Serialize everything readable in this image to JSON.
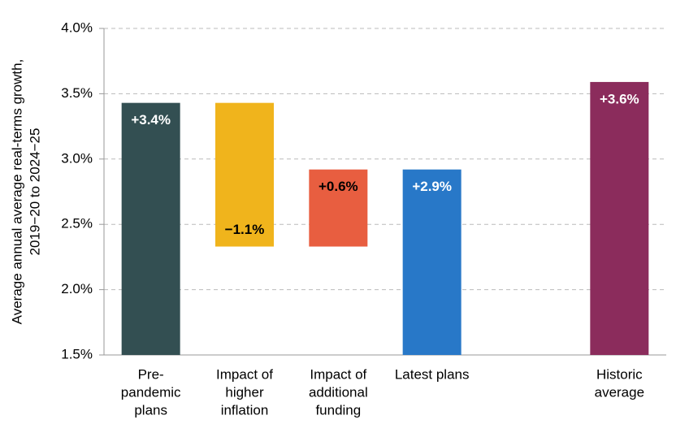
{
  "chart_data": {
    "type": "waterfall",
    "ylabel": [
      "Average annual average real-terms growth,",
      "2019−20 to 2024−25"
    ],
    "categories": [
      [
        "Pre-",
        "pandemic",
        "plans"
      ],
      [
        "Impact of",
        "higher",
        "inflation"
      ],
      [
        "Impact of",
        "additional",
        "funding"
      ],
      [
        "Latest plans"
      ],
      null,
      [
        "Historic",
        "average"
      ]
    ],
    "measure": [
      "absolute",
      "relative",
      "relative",
      "absolute",
      null,
      "absolute"
    ],
    "values": [
      3.43,
      -1.1,
      0.59,
      2.92,
      null,
      3.59
    ],
    "value_labels": [
      "+3.4%",
      "−1.1%",
      "+0.6%",
      "+2.9%",
      null,
      "+3.6%"
    ],
    "colors": [
      "#334f52",
      "#f0b41c",
      "#e85e40",
      "#2878c8",
      null,
      "#8b2c5c"
    ],
    "value_label_colors": [
      "#ffffff",
      "#000000",
      "#000000",
      "#ffffff",
      null,
      "#ffffff"
    ],
    "ylim": [
      1.5,
      4.0
    ],
    "yticks": [
      {
        "value": 1.5,
        "label": "1.5%"
      },
      {
        "value": 2.0,
        "label": "2.0%"
      },
      {
        "value": 2.5,
        "label": "2.5%"
      },
      {
        "value": 3.0,
        "label": "3.0%"
      },
      {
        "value": 3.5,
        "label": "3.5%"
      },
      {
        "value": 4.0,
        "label": "4.0%"
      }
    ],
    "grid": true
  }
}
